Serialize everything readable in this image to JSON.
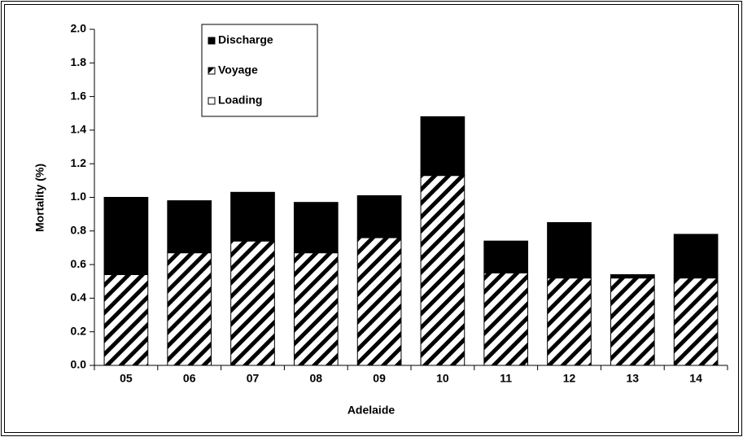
{
  "chart_data": {
    "type": "stacked-bar",
    "x_label": "Adelaide",
    "y_label": "Mortality (%)",
    "categories": [
      "05",
      "06",
      "07",
      "08",
      "09",
      "10",
      "11",
      "12",
      "13",
      "14"
    ],
    "series": [
      {
        "name": "Loading",
        "color": "#ffffff",
        "values": [
          0,
          0,
          0,
          0,
          0,
          0,
          0,
          0,
          0,
          0
        ]
      },
      {
        "name": "Voyage",
        "color": "#000000",
        "pattern": "hatch",
        "values": [
          0.54,
          0.67,
          0.74,
          0.67,
          0.76,
          1.13,
          0.55,
          0.52,
          0.52,
          0.52
        ]
      },
      {
        "name": "Discharge",
        "color": "#000000",
        "values": [
          0.46,
          0.31,
          0.29,
          0.3,
          0.25,
          0.35,
          0.19,
          0.33,
          0.02,
          0.26
        ]
      }
    ],
    "ylim": [
      0,
      2
    ],
    "yticks": [
      {
        "value": 0,
        "label": "0.0"
      },
      {
        "value": 0.2,
        "label": "0.2"
      },
      {
        "value": 0.4,
        "label": "0.4"
      },
      {
        "value": 0.6,
        "label": "0.6"
      },
      {
        "value": 0.8,
        "label": "0.8"
      },
      {
        "value": 1,
        "label": "1.0"
      },
      {
        "value": 1.2,
        "label": "1.2"
      },
      {
        "value": 1.4,
        "label": "1.4"
      },
      {
        "value": 1.6,
        "label": "1.6"
      },
      {
        "value": 1.8,
        "label": "1.8"
      },
      {
        "value": 2,
        "label": "2.0"
      }
    ]
  }
}
